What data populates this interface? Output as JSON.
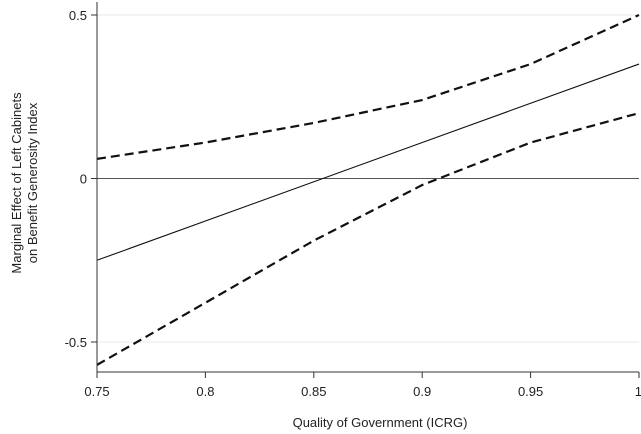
{
  "chart_data": {
    "type": "line",
    "title": "",
    "xlabel": "Quality of Government (ICRG)",
    "ylabel": [
      "Marginal Effect of Left Cabinets",
      "on Benefit Generosity Index"
    ],
    "xlim": [
      0.75,
      1.0
    ],
    "ylim": [
      -0.6,
      0.5
    ],
    "x_ticks": [
      0.75,
      0.8,
      0.85,
      0.9,
      0.95,
      1.0
    ],
    "x_tick_labels": [
      "0.75",
      "0.8",
      "0.85",
      "0.9",
      "0.95",
      "1"
    ],
    "y_ticks": [
      -0.5,
      0,
      0.5
    ],
    "y_tick_labels": [
      "-0.5",
      "0",
      "0.5"
    ],
    "grid": "horizontal",
    "reference_line_y": 0,
    "series": [
      {
        "style": "solid",
        "x": [
          0.75,
          1.0
        ],
        "y": [
          -0.25,
          0.35
        ]
      },
      {
        "style": "dashed",
        "x": [
          0.75,
          0.8,
          0.85,
          0.9,
          0.95,
          1.0
        ],
        "y": [
          0.06,
          0.11,
          0.17,
          0.24,
          0.35,
          0.5
        ]
      },
      {
        "style": "dashed",
        "x": [
          0.75,
          0.8,
          0.85,
          0.9,
          0.95,
          1.0
        ],
        "y": [
          -0.57,
          -0.38,
          -0.19,
          -0.02,
          0.11,
          0.2
        ]
      }
    ]
  }
}
